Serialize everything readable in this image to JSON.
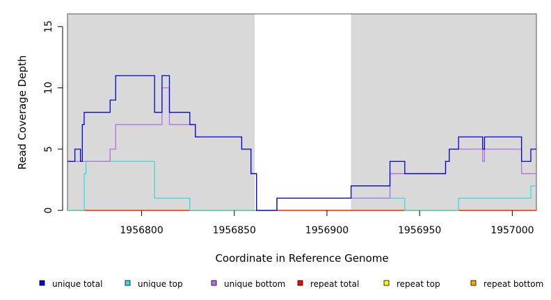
{
  "chart_data": {
    "type": "line",
    "title": "",
    "xlabel": "Coordinate in Reference Genome",
    "ylabel": "Read Coverage Depth",
    "xlim": [
      1956760,
      1957013
    ],
    "ylim": [
      0,
      16
    ],
    "x_ticks": [
      1956800,
      1956850,
      1956900,
      1956950,
      1957000
    ],
    "x_tick_labels": [
      "1956800",
      "1956850",
      "1956900",
      "1956950",
      "1957000"
    ],
    "y_ticks": [
      0,
      5,
      10,
      15
    ],
    "y_tick_labels": [
      "0",
      "5",
      "10",
      "15"
    ],
    "shaded_regions": [
      [
        1956760,
        1956861
      ],
      [
        1956913,
        1957013
      ]
    ],
    "unshaded_regions": [
      [
        1956861,
        1956913
      ]
    ],
    "series": [
      {
        "name": "unique total",
        "color": "#0000dd",
        "steps": [
          [
            1956760,
            4
          ],
          [
            1956764,
            5
          ],
          [
            1956767,
            4
          ],
          [
            1956768,
            7
          ],
          [
            1956769,
            8
          ],
          [
            1956783,
            9
          ],
          [
            1956786,
            11
          ],
          [
            1956807,
            8
          ],
          [
            1956811,
            11
          ],
          [
            1956815,
            8
          ],
          [
            1956826,
            7
          ],
          [
            1956829,
            6
          ],
          [
            1956854,
            5
          ],
          [
            1956859,
            3
          ],
          [
            1956862,
            0
          ],
          [
            1956873,
            1
          ],
          [
            1956913,
            2
          ],
          [
            1956934,
            4
          ],
          [
            1956942,
            3
          ],
          [
            1956964,
            4
          ],
          [
            1956966,
            5
          ],
          [
            1956971,
            6
          ],
          [
            1956984,
            5
          ],
          [
            1956985,
            6
          ],
          [
            1957005,
            4
          ],
          [
            1957010,
            5
          ],
          [
            1957013,
            5
          ]
        ]
      },
      {
        "name": "unique top",
        "color": "#33dddd",
        "steps": [
          [
            1956760,
            0
          ],
          [
            1956769,
            3
          ],
          [
            1956770,
            4
          ],
          [
            1956807,
            1
          ],
          [
            1956826,
            0
          ],
          [
            1956873,
            1
          ],
          [
            1956913,
            1
          ],
          [
            1956942,
            0
          ],
          [
            1956971,
            1
          ],
          [
            1957010,
            2
          ],
          [
            1957013,
            2
          ]
        ]
      },
      {
        "name": "unique bottom",
        "color": "#b070e0",
        "steps": [
          [
            1956760,
            4
          ],
          [
            1956768,
            4
          ],
          [
            1956783,
            5
          ],
          [
            1956786,
            7
          ],
          [
            1956811,
            10
          ],
          [
            1956815,
            7
          ],
          [
            1956829,
            6
          ],
          [
            1956854,
            5
          ],
          [
            1956859,
            3
          ],
          [
            1956862,
            0
          ],
          [
            1956873,
            1
          ],
          [
            1956934,
            3
          ],
          [
            1956942,
            3
          ],
          [
            1956964,
            4
          ],
          [
            1956966,
            5
          ],
          [
            1956984,
            4
          ],
          [
            1956985,
            5
          ],
          [
            1957005,
            3
          ],
          [
            1957013,
            3
          ]
        ]
      },
      {
        "name": "repeat total",
        "color": "#ff0000",
        "steps": [
          [
            1956760,
            0
          ],
          [
            1957013,
            0
          ]
        ]
      },
      {
        "name": "repeat top",
        "color": "#ffff00",
        "steps": [
          [
            1956760,
            0
          ],
          [
            1957013,
            0
          ]
        ]
      },
      {
        "name": "repeat bottom",
        "color": "#ffa500",
        "steps": [
          [
            1956760,
            0
          ],
          [
            1957013,
            0
          ]
        ]
      }
    ],
    "legend_position": "bottom"
  }
}
